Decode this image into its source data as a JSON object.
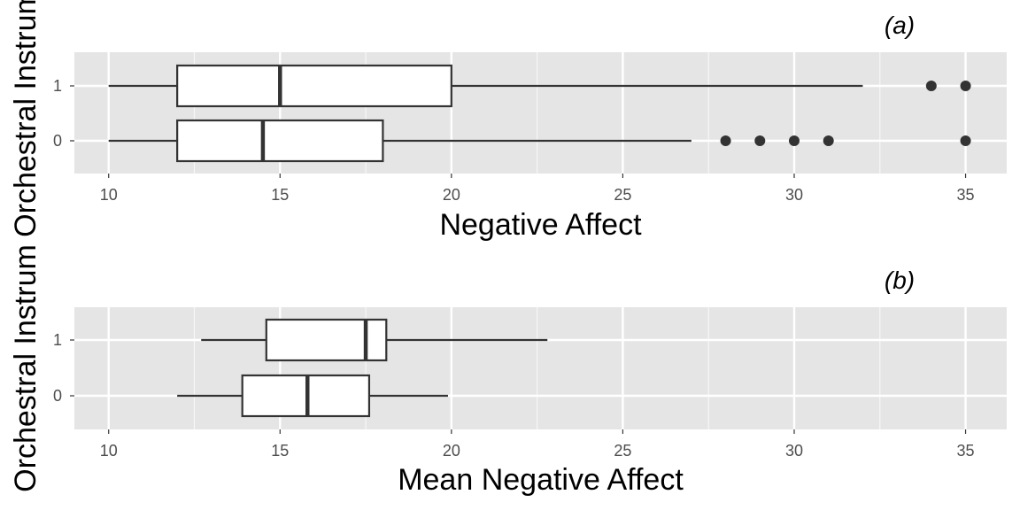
{
  "colors": {
    "panel_bg": "#e5e5e5",
    "grid_major": "#ffffff",
    "box_fill": "#ffffff",
    "box_stroke": "#333333",
    "outlier": "#333333"
  },
  "chart_data": [
    {
      "type": "boxplot",
      "tag": "(a)",
      "xlabel": "Negative Affect",
      "ylabel": "Orchestral Instrum",
      "xlim": [
        9,
        36.2
      ],
      "xticks": [
        10,
        15,
        20,
        25,
        30,
        35
      ],
      "categories": [
        "1",
        "0"
      ],
      "boxes": [
        {
          "category": "1",
          "whisker_low": 10,
          "q1": 12,
          "median": 15,
          "q3": 20,
          "whisker_high": 32,
          "outliers": [
            34,
            35
          ]
        },
        {
          "category": "0",
          "whisker_low": 10,
          "q1": 12,
          "median": 14.5,
          "q3": 18,
          "whisker_high": 27,
          "outliers": [
            28,
            29,
            30,
            31,
            35
          ]
        }
      ],
      "grid": true
    },
    {
      "type": "boxplot",
      "tag": "(b)",
      "xlabel": "Mean Negative Affect",
      "ylabel": "Orchestral Instrum",
      "xlim": [
        9,
        36.2
      ],
      "xticks": [
        10,
        15,
        20,
        25,
        30,
        35
      ],
      "categories": [
        "1",
        "0"
      ],
      "boxes": [
        {
          "category": "1",
          "whisker_low": 12.7,
          "q1": 14.6,
          "median": 17.5,
          "q3": 18.1,
          "whisker_high": 22.8,
          "outliers": []
        },
        {
          "category": "0",
          "whisker_low": 12.0,
          "q1": 13.9,
          "median": 15.8,
          "q3": 17.6,
          "whisker_high": 19.9,
          "outliers": []
        }
      ],
      "grid": true
    }
  ]
}
